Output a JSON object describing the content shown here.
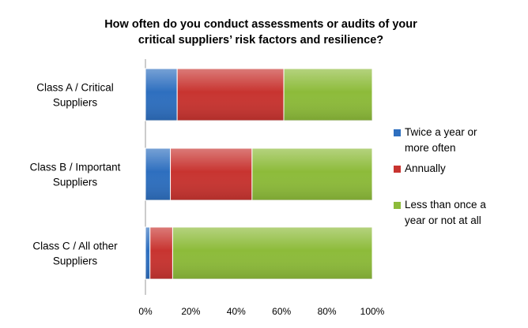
{
  "chart_data": {
    "type": "bar",
    "orientation": "horizontal",
    "stacked": "percent",
    "title_lines": [
      "How often do you conduct assessments or audits of your",
      "critical suppliers’ risk factors and resilience?"
    ],
    "categories": [
      [
        "Class A / Critical",
        "Suppliers"
      ],
      [
        "Class B / Important",
        "Suppliers"
      ],
      [
        "Class C / All other",
        "Suppliers"
      ]
    ],
    "series": [
      {
        "name": "Twice a year or more often",
        "legend_lines": [
          "Twice a year or",
          "more often"
        ],
        "color": "#2E6FBF",
        "values": [
          14,
          11,
          2
        ]
      },
      {
        "name": "Annually",
        "legend_lines": [
          "Annually"
        ],
        "color": "#C83430",
        "values": [
          47,
          36,
          10
        ]
      },
      {
        "name": "Less than once a year or not at all",
        "legend_lines": [
          "Less than once a",
          "year or not at all"
        ],
        "color": "#8DBB3A",
        "values": [
          39,
          53,
          88
        ]
      }
    ],
    "xlim": [
      0,
      100
    ],
    "x_ticks": [
      "0%",
      "20%",
      "40%",
      "60%",
      "80%",
      "100%"
    ],
    "grid": false,
    "legend_position": "right"
  }
}
